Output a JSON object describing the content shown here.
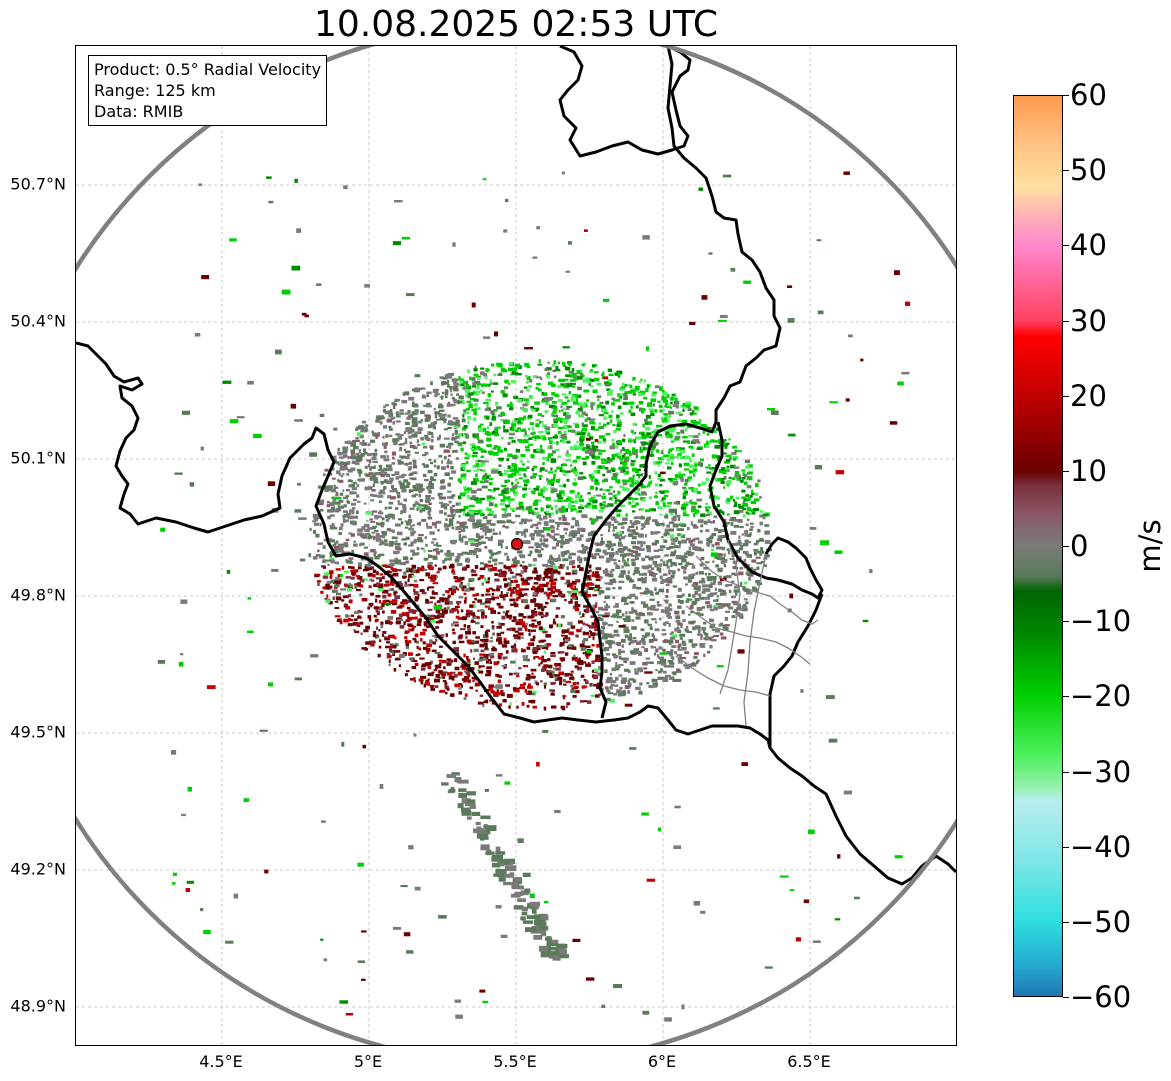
{
  "title": "10.08.2025 02:53 UTC",
  "info": {
    "product": "Product: 0.5° Radial Velocity",
    "range": "Range: 125 km",
    "source": "Data: RMIB"
  },
  "axes": {
    "lon_ticks": [
      "4.5°E",
      "5°E",
      "5.5°E",
      "6°E",
      "6.5°E"
    ],
    "lat_ticks": [
      "50.7°N",
      "50.4°N",
      "50.1°N",
      "49.8°N",
      "49.5°N",
      "49.2°N",
      "48.9°N"
    ],
    "lon_range": [
      4.0,
      7.0
    ],
    "lat_range": [
      48.8,
      51.0
    ],
    "grid": true
  },
  "radar": {
    "lon": 5.505,
    "lat": 49.914,
    "range_km": 125,
    "marker_color": "#dd1111"
  },
  "colorbar": {
    "unit": "m/s",
    "ticks": [
      "60",
      "50",
      "40",
      "30",
      "20",
      "10",
      "0",
      "−10",
      "−20",
      "−30",
      "−40",
      "−50",
      "−60"
    ],
    "range": [
      -60,
      60
    ],
    "stops": [
      {
        "v": -60,
        "c": "#1f77b4"
      },
      {
        "v": -56,
        "c": "#24a8d0"
      },
      {
        "v": -50,
        "c": "#2fdede"
      },
      {
        "v": -42,
        "c": "#7ee6e6"
      },
      {
        "v": -34,
        "c": "#b8eef0"
      },
      {
        "v": -32,
        "c": "#90f0a8"
      },
      {
        "v": -28,
        "c": "#50f060"
      },
      {
        "v": -20,
        "c": "#00d000"
      },
      {
        "v": -12,
        "c": "#008a00"
      },
      {
        "v": -6,
        "c": "#006400"
      },
      {
        "v": -4,
        "c": "#5a7a5a"
      },
      {
        "v": 0,
        "c": "#7a7a7a"
      },
      {
        "v": 4,
        "c": "#8a5a6a"
      },
      {
        "v": 8,
        "c": "#7a3040"
      },
      {
        "v": 10,
        "c": "#6a0000"
      },
      {
        "v": 20,
        "c": "#c00000"
      },
      {
        "v": 28,
        "c": "#ff0000"
      },
      {
        "v": 30,
        "c": "#ff4060"
      },
      {
        "v": 40,
        "c": "#ff88cc"
      },
      {
        "v": 44,
        "c": "#ffb0b8"
      },
      {
        "v": 48,
        "c": "#ffe0a0"
      },
      {
        "v": 54,
        "c": "#ffc080"
      },
      {
        "v": 60,
        "c": "#ff9a50"
      }
    ]
  },
  "colors": {
    "border": "#000000",
    "range_ring": "#808080",
    "grid": "#bbbbbb"
  }
}
